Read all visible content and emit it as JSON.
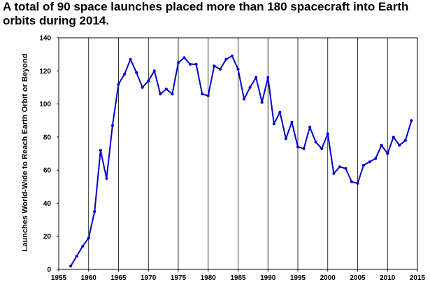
{
  "chart_data": {
    "type": "line",
    "title": "A total of 90 space launches placed more than 180 spacecraft into Earth orbits during 2014.",
    "xlabel": "",
    "ylabel": "Launches World-Wide to Reach Earth Orbit or Beyond",
    "xlim": [
      1955,
      2015
    ],
    "ylim": [
      0,
      140
    ],
    "xticks": [
      1955,
      1960,
      1965,
      1970,
      1975,
      1980,
      1985,
      1990,
      1995,
      2000,
      2005,
      2010,
      2015
    ],
    "yticks": [
      0,
      20,
      40,
      60,
      80,
      100,
      120,
      140
    ],
    "grid": "vertical",
    "legend": "none",
    "line_color": "#0000cc",
    "series": [
      {
        "x": [
          1957,
          1958,
          1959,
          1960,
          1961,
          1962,
          1963,
          1964,
          1965,
          1966,
          1967,
          1968,
          1969,
          1970,
          1971,
          1972,
          1973,
          1974,
          1975,
          1976,
          1977,
          1978,
          1979,
          1980,
          1981,
          1982,
          1983,
          1984,
          1985,
          1986,
          1987,
          1988,
          1989,
          1990,
          1991,
          1992,
          1993,
          1994,
          1995,
          1996,
          1997,
          1998,
          1999,
          2000,
          2001,
          2002,
          2003,
          2004,
          2005,
          2006,
          2007,
          2008,
          2009,
          2010,
          2011,
          2012,
          2013,
          2014
        ],
        "values": [
          2,
          8,
          14,
          19,
          35,
          72,
          55,
          87,
          112,
          118,
          127,
          119,
          110,
          114,
          120,
          106,
          109,
          106,
          125,
          128,
          124,
          124,
          106,
          105,
          123,
          121,
          127,
          129,
          121,
          103,
          110,
          116,
          101,
          116,
          88,
          95,
          79,
          89,
          74,
          73,
          86,
          77,
          73,
          82,
          58,
          62,
          61,
          53,
          52,
          63,
          65,
          67,
          75,
          70,
          80,
          75,
          78,
          90
        ]
      }
    ]
  }
}
